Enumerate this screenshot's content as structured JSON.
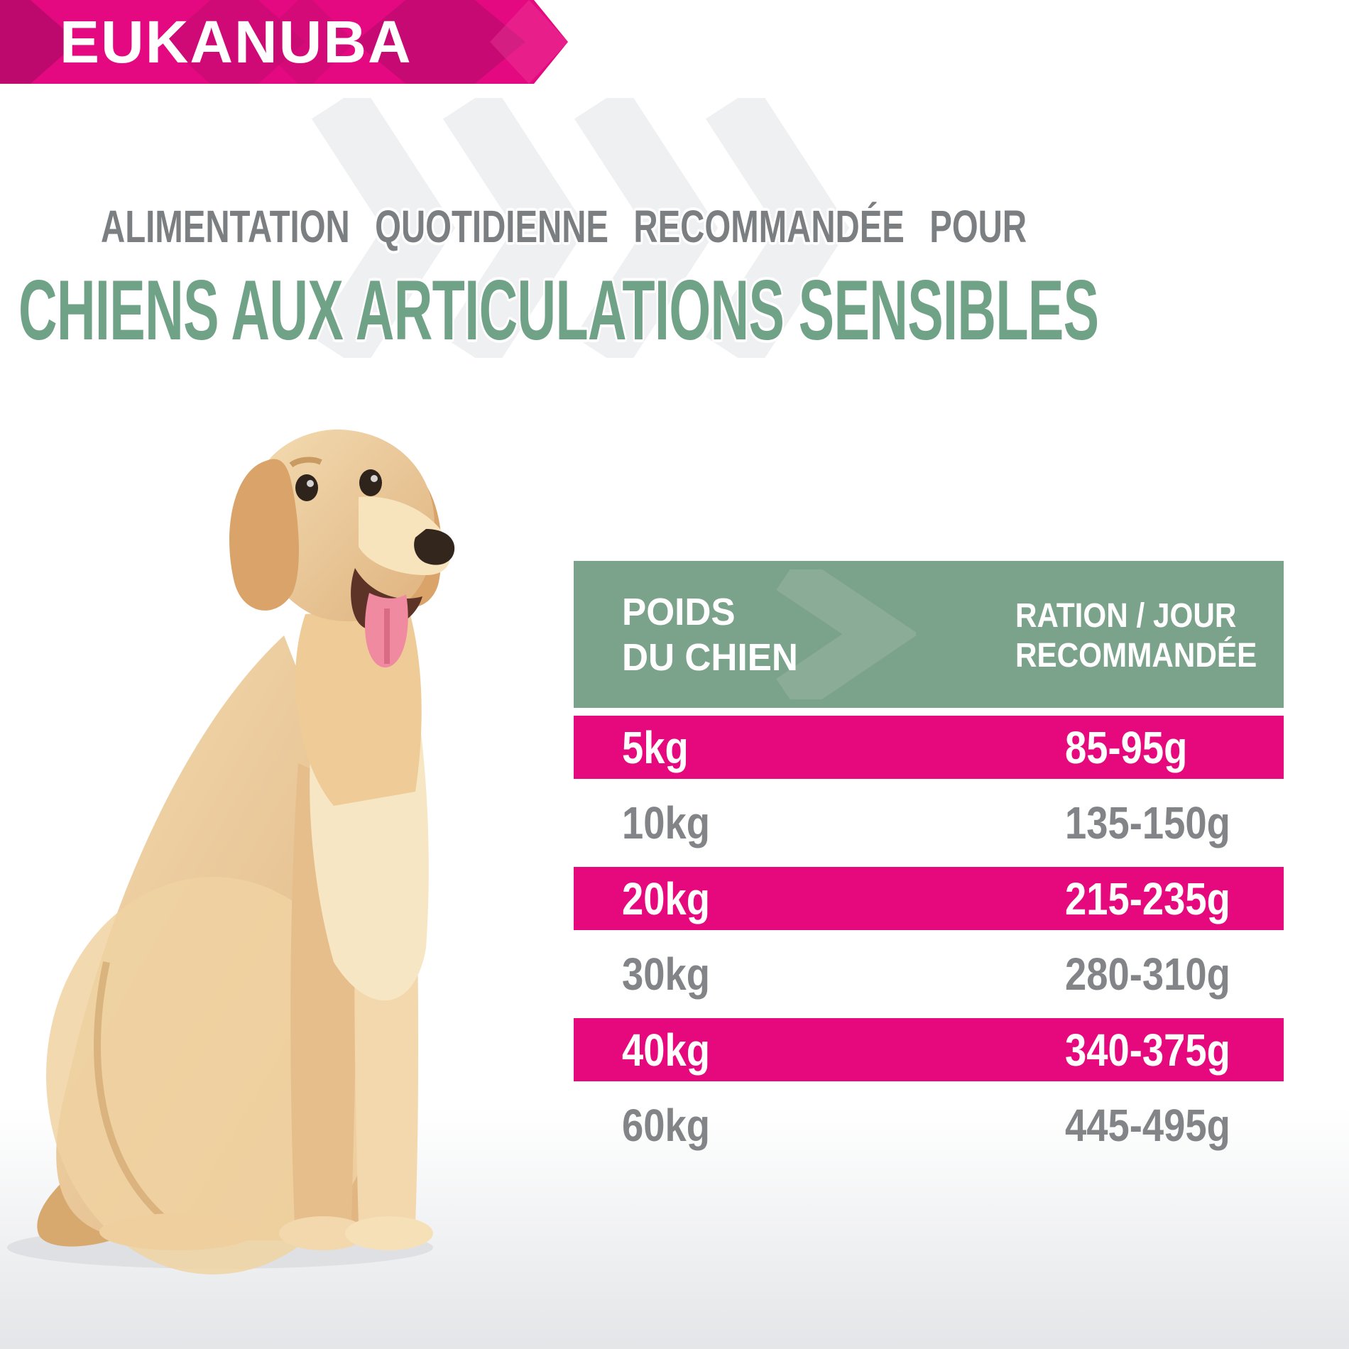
{
  "brand": {
    "name": "EUKANUBA"
  },
  "title": {
    "line1": "ALIMENTATION QUOTIDIENNE RECOMMANDÉE POUR",
    "line2": "CHIENS AUX ARTICULATIONS SENSIBLES"
  },
  "table": {
    "header": {
      "weight_line1": "POIDS",
      "weight_line2": "DU CHIEN",
      "ration_line1": "RATION / JOUR",
      "ration_line2": "RECOMMANDÉE"
    },
    "rows": [
      {
        "weight": "5kg",
        "ration": "85-95g",
        "highlight": true
      },
      {
        "weight": "10kg",
        "ration": "135-150g",
        "highlight": false
      },
      {
        "weight": "20kg",
        "ration": "215-235g",
        "highlight": true
      },
      {
        "weight": "30kg",
        "ration": "280-310g",
        "highlight": false
      },
      {
        "weight": "40kg",
        "ration": "340-375g",
        "highlight": true
      },
      {
        "weight": "60kg",
        "ration": "445-495g",
        "highlight": false
      }
    ]
  },
  "colors": {
    "brand_pink": "#E40980",
    "row_pink": "#E5097D",
    "header_green": "#7BA28A",
    "title_green": "#6FA287",
    "title_gray": "#7C7F82",
    "value_gray": "#828487"
  },
  "image": {
    "photo_subject": "golden-retriever-sitting"
  }
}
